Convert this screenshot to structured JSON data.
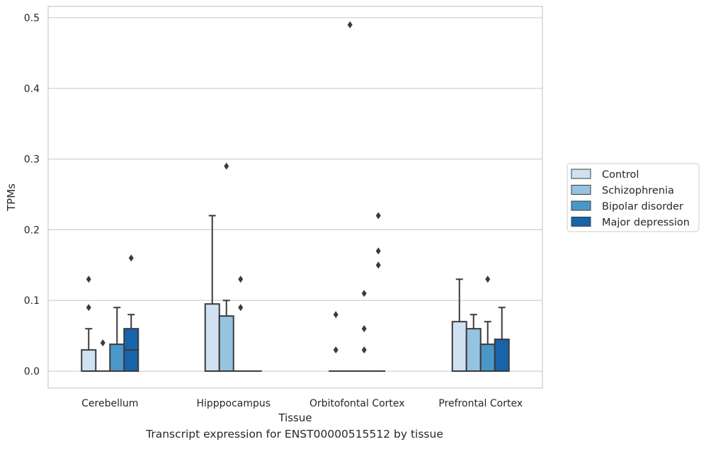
{
  "caption": "Transcript expression for ENST00000515512 by tissue",
  "chart_data": {
    "type": "box",
    "xlabel": "Tissue",
    "ylabel": "TPMs",
    "ylim": [
      -0.024,
      0.516
    ],
    "yticks": [
      0.0,
      0.1,
      0.2,
      0.3,
      0.4,
      0.5
    ],
    "ytick_labels": [
      "0.0",
      "0.1",
      "0.2",
      "0.3",
      "0.4",
      "0.5"
    ],
    "grid": true,
    "legend_position": "right",
    "categories": [
      "Cerebellum",
      "Hipppocampus",
      "Orbitofontal Cortex",
      "Prefrontal Cortex"
    ],
    "series": [
      {
        "name": "Control",
        "color": "#d0e1f2",
        "boxes": [
          {
            "q1": 0.0,
            "median": 0.0,
            "q3": 0.03,
            "whisker_low": 0.0,
            "whisker_high": 0.06,
            "outliers": [
              0.09,
              0.13
            ]
          },
          {
            "q1": 0.0,
            "median": 0.0,
            "q3": 0.095,
            "whisker_low": 0.0,
            "whisker_high": 0.22,
            "outliers": []
          },
          {
            "q1": 0.0,
            "median": 0.0,
            "q3": 0.0,
            "whisker_low": 0.0,
            "whisker_high": 0.0,
            "outliers": [
              0.03,
              0.08
            ]
          },
          {
            "q1": 0.0,
            "median": 0.0,
            "q3": 0.07,
            "whisker_low": 0.0,
            "whisker_high": 0.13,
            "outliers": []
          }
        ]
      },
      {
        "name": "Schizophrenia",
        "color": "#94c4df",
        "boxes": [
          {
            "q1": 0.0,
            "median": 0.0,
            "q3": 0.0,
            "whisker_low": 0.0,
            "whisker_high": 0.0,
            "outliers": [
              0.04
            ]
          },
          {
            "q1": 0.0,
            "median": 0.0,
            "q3": 0.078,
            "whisker_low": 0.0,
            "whisker_high": 0.1,
            "outliers": [
              0.29
            ]
          },
          {
            "q1": 0.0,
            "median": 0.0,
            "q3": 0.0,
            "whisker_low": 0.0,
            "whisker_high": 0.0,
            "outliers": [
              0.49
            ]
          },
          {
            "q1": 0.0,
            "median": 0.0,
            "q3": 0.06,
            "whisker_low": 0.0,
            "whisker_high": 0.08,
            "outliers": []
          }
        ]
      },
      {
        "name": "Bipolar disorder",
        "color": "#4a98c9",
        "boxes": [
          {
            "q1": 0.0,
            "median": 0.0,
            "q3": 0.038,
            "whisker_low": 0.0,
            "whisker_high": 0.09,
            "outliers": []
          },
          {
            "q1": 0.0,
            "median": 0.0,
            "q3": 0.0,
            "whisker_low": 0.0,
            "whisker_high": 0.0,
            "outliers": [
              0.09,
              0.13
            ]
          },
          {
            "q1": 0.0,
            "median": 0.0,
            "q3": 0.0,
            "whisker_low": 0.0,
            "whisker_high": 0.0,
            "outliers": [
              0.03,
              0.06,
              0.11
            ]
          },
          {
            "q1": 0.0,
            "median": 0.0,
            "q3": 0.038,
            "whisker_low": 0.0,
            "whisker_high": 0.07,
            "outliers": [
              0.13
            ]
          }
        ]
      },
      {
        "name": "Major depression",
        "color": "#1764ab",
        "boxes": [
          {
            "q1": 0.0,
            "median": 0.03,
            "q3": 0.06,
            "whisker_low": 0.0,
            "whisker_high": 0.08,
            "outliers": [
              0.16
            ]
          },
          {
            "q1": 0.0,
            "median": 0.0,
            "q3": 0.0,
            "whisker_low": 0.0,
            "whisker_high": 0.0,
            "outliers": []
          },
          {
            "q1": 0.0,
            "median": 0.0,
            "q3": 0.0,
            "whisker_low": 0.0,
            "whisker_high": 0.0,
            "outliers": [
              0.15,
              0.17,
              0.22
            ]
          },
          {
            "q1": 0.0,
            "median": 0.0,
            "q3": 0.045,
            "whisker_low": 0.0,
            "whisker_high": 0.09,
            "outliers": []
          }
        ]
      }
    ]
  }
}
